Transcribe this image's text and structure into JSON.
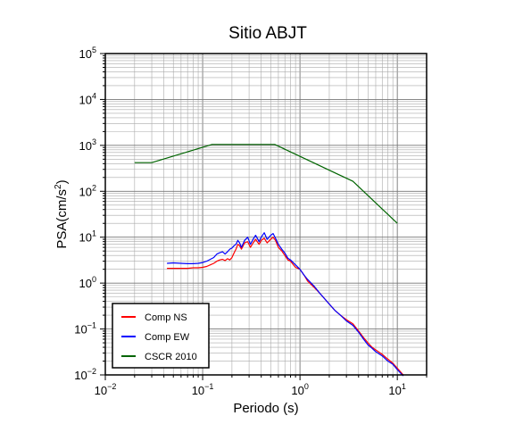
{
  "chart_data": {
    "type": "line",
    "title": "Sitio ABJT",
    "xlabel": "Periodo (s)",
    "ylabel": "PSA(cm/s2)",
    "xscale": "log",
    "yscale": "log",
    "xlim": [
      0.01,
      20
    ],
    "ylim": [
      0.01,
      100000
    ],
    "grid": true,
    "legend_position": "bottom-left",
    "x_tick_labels": [
      {
        "value": 0.01,
        "base": "10",
        "exp": "−2"
      },
      {
        "value": 0.1,
        "base": "10",
        "exp": "−1"
      },
      {
        "value": 1,
        "base": "10",
        "exp": "0"
      },
      {
        "value": 10,
        "base": "10",
        "exp": "1"
      }
    ],
    "y_tick_labels": [
      {
        "value": 0.01,
        "base": "10",
        "exp": "−2"
      },
      {
        "value": 0.1,
        "base": "10",
        "exp": "−1"
      },
      {
        "value": 1,
        "base": "10",
        "exp": "0"
      },
      {
        "value": 10,
        "base": "10",
        "exp": "1"
      },
      {
        "value": 100,
        "base": "10",
        "exp": "2"
      },
      {
        "value": 1000,
        "base": "10",
        "exp": "3"
      },
      {
        "value": 10000,
        "base": "10",
        "exp": "4"
      },
      {
        "value": 100000,
        "base": "10",
        "exp": "5"
      }
    ],
    "series": [
      {
        "name": "Comp NS",
        "color": "#ff0000",
        "x": [
          0.043,
          0.05,
          0.06,
          0.07,
          0.08,
          0.09,
          0.1,
          0.11,
          0.12,
          0.13,
          0.14,
          0.15,
          0.16,
          0.17,
          0.18,
          0.19,
          0.2,
          0.21,
          0.22,
          0.23,
          0.24,
          0.25,
          0.27,
          0.29,
          0.31,
          0.33,
          0.35,
          0.38,
          0.4,
          0.43,
          0.46,
          0.5,
          0.53,
          0.56,
          0.6,
          0.65,
          0.7,
          0.75,
          0.8,
          0.9,
          1.0,
          1.1,
          1.2,
          1.4,
          1.6,
          1.8,
          2.0,
          2.3,
          2.6,
          3.0,
          3.5,
          4.0,
          4.5,
          5.0,
          5.5,
          6.0,
          7.0,
          8.0,
          9.0,
          10.0,
          11.5
        ],
        "y": [
          2.1,
          2.1,
          2.1,
          2.1,
          2.15,
          2.15,
          2.2,
          2.3,
          2.5,
          2.7,
          3.0,
          3.2,
          3.3,
          3.1,
          3.4,
          3.2,
          3.6,
          4.5,
          5.5,
          7.0,
          6.5,
          5.5,
          7.5,
          8.0,
          6.0,
          7.5,
          9.0,
          7.0,
          8.5,
          9.5,
          7.5,
          9.0,
          10.0,
          8.5,
          6.0,
          5.0,
          4.0,
          3.2,
          3.0,
          2.2,
          2.0,
          1.5,
          1.1,
          0.8,
          0.6,
          0.45,
          0.35,
          0.25,
          0.2,
          0.16,
          0.13,
          0.09,
          0.065,
          0.05,
          0.04,
          0.035,
          0.028,
          0.022,
          0.018,
          0.014,
          0.01
        ]
      },
      {
        "name": "Comp EW",
        "color": "#0000ff",
        "x": [
          0.043,
          0.05,
          0.06,
          0.07,
          0.08,
          0.09,
          0.1,
          0.11,
          0.12,
          0.13,
          0.14,
          0.15,
          0.16,
          0.17,
          0.18,
          0.19,
          0.2,
          0.21,
          0.22,
          0.23,
          0.24,
          0.25,
          0.27,
          0.29,
          0.31,
          0.33,
          0.35,
          0.38,
          0.4,
          0.43,
          0.46,
          0.5,
          0.53,
          0.56,
          0.6,
          0.65,
          0.7,
          0.75,
          0.8,
          0.9,
          1.0,
          1.1,
          1.2,
          1.4,
          1.6,
          1.8,
          2.0,
          2.3,
          2.6,
          3.0,
          3.5,
          4.0,
          4.5,
          5.0,
          5.5,
          6.0,
          7.0,
          8.0,
          9.0,
          10.0,
          11.5
        ],
        "y": [
          2.7,
          2.75,
          2.7,
          2.65,
          2.65,
          2.7,
          2.8,
          3.0,
          3.3,
          3.6,
          4.3,
          4.6,
          4.8,
          4.3,
          4.8,
          5.5,
          5.8,
          6.5,
          7.0,
          8.5,
          7.5,
          6.0,
          8.5,
          10.0,
          7.0,
          9.0,
          11.0,
          8.0,
          10.0,
          12.5,
          9.0,
          11.0,
          12.0,
          9.5,
          7.0,
          5.5,
          4.5,
          3.5,
          3.2,
          2.5,
          2.0,
          1.5,
          1.2,
          0.85,
          0.6,
          0.45,
          0.35,
          0.25,
          0.2,
          0.15,
          0.12,
          0.085,
          0.06,
          0.045,
          0.038,
          0.032,
          0.026,
          0.02,
          0.017,
          0.013,
          0.0095
        ]
      },
      {
        "name": "CSCR 2010",
        "color": "#006400",
        "x": [
          0.02,
          0.03,
          0.125,
          0.55,
          3.5,
          10.0
        ],
        "y": [
          420,
          420,
          1050,
          1050,
          165,
          20
        ]
      }
    ]
  }
}
